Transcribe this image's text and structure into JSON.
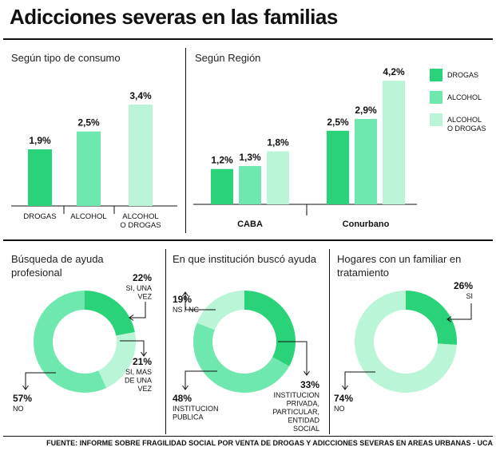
{
  "title": "Adicciones severas en las familias",
  "source": "FUENTE: INFORME SOBRE FRAGILIDAD SOCIAL POR VENTA DE DROGAS Y ADICCIONES SEVERAS EN AREAS URBANAS - UCA",
  "colors": {
    "drogas": "#2ad37a",
    "alcohol": "#6fe8b0",
    "alcohol_o_drogas": "#b9f5d6"
  },
  "chart_data": [
    {
      "type": "bar",
      "title": "Según tipo de consumo",
      "categories": [
        "DROGAS",
        "ALCOHOL",
        "ALCOHOL O DROGAS"
      ],
      "values": [
        1.9,
        2.5,
        3.4
      ],
      "value_labels": [
        "1,9%",
        "2,5%",
        "3,4%"
      ],
      "ylim": [
        0,
        4.5
      ]
    },
    {
      "type": "bar",
      "title": "Según Región",
      "categories": [
        "CABA",
        "Conurbano"
      ],
      "series": [
        {
          "name": "DROGAS",
          "values": [
            1.2,
            2.5
          ],
          "labels": [
            "1,2%",
            "2,5%"
          ]
        },
        {
          "name": "ALCOHOL",
          "values": [
            1.3,
            2.9
          ],
          "labels": [
            "1,3%",
            "2,9%"
          ]
        },
        {
          "name": "ALCOHOL O DROGAS",
          "values": [
            1.8,
            4.2
          ],
          "labels": [
            "1,8%",
            "4,2%"
          ]
        }
      ],
      "legend": [
        "DROGAS",
        "ALCOHOL",
        "ALCOHOL O DROGAS"
      ],
      "legend_position": "right",
      "ylim": [
        0,
        4.5
      ]
    },
    {
      "type": "pie",
      "title": "Búsqueda de ayuda profesional",
      "slices": [
        {
          "label": "SI, UNA VEZ",
          "value": 22,
          "pct": "22%"
        },
        {
          "label": "SI, MAS DE UNA VEZ",
          "value": 21,
          "pct": "21%"
        },
        {
          "label": "NO",
          "value": 57,
          "pct": "57%"
        }
      ]
    },
    {
      "type": "pie",
      "title": "En que institución buscó ayuda",
      "slices": [
        {
          "label": "INSTITUCION PRIVADA, PARTICULAR, ENTIDAD SOCIAL",
          "value": 33,
          "pct": "33%"
        },
        {
          "label": "INSTITUCION PUBLICA",
          "value": 48,
          "pct": "48%"
        },
        {
          "label": "NS / NC",
          "value": 19,
          "pct": "19%"
        }
      ]
    },
    {
      "type": "pie",
      "title": "Hogares con un familiar en tratamiento",
      "slices": [
        {
          "label": "SI",
          "value": 26,
          "pct": "26%"
        },
        {
          "label": "NO",
          "value": 74,
          "pct": "74%"
        }
      ]
    }
  ]
}
